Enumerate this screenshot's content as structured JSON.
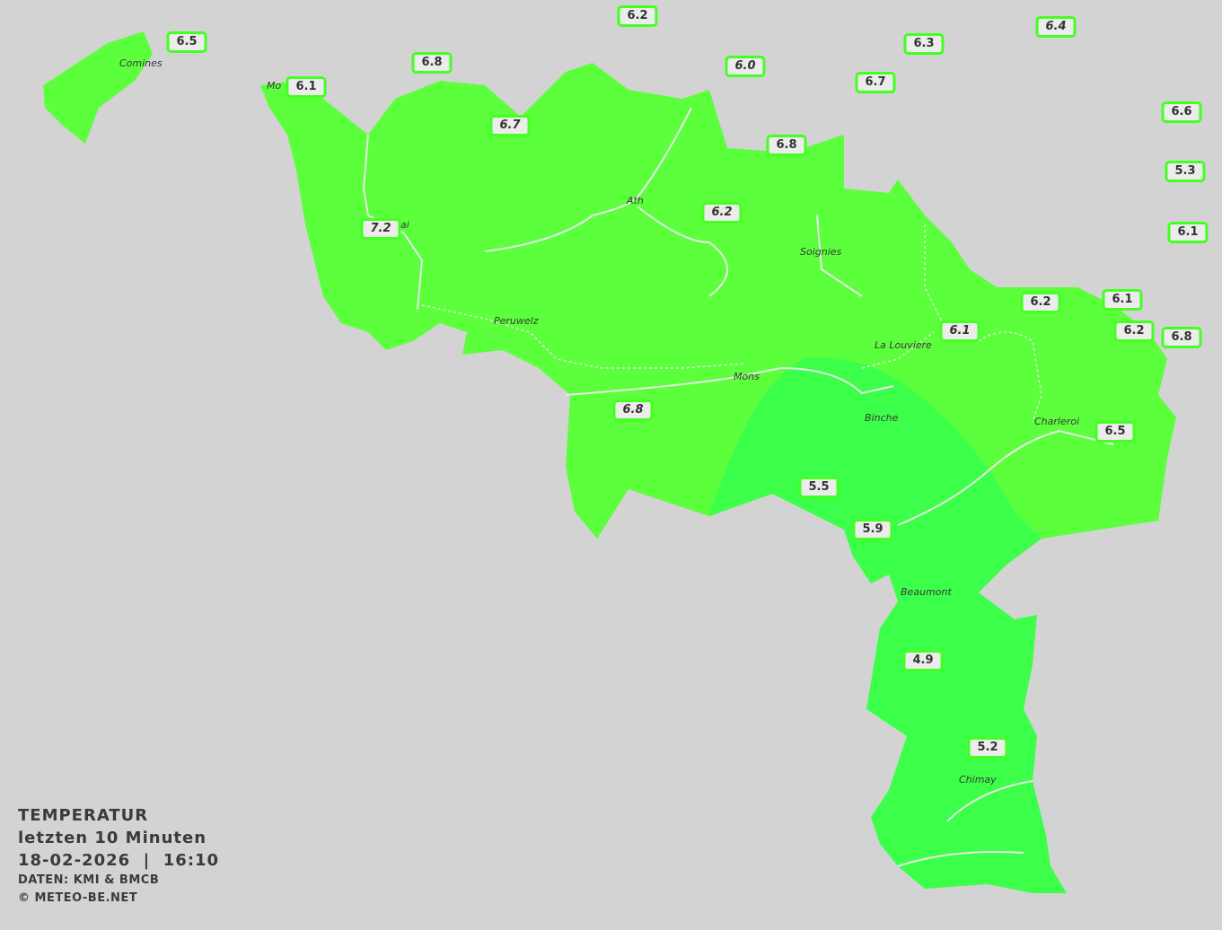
{
  "legend": {
    "title": "TEMPERATUR",
    "period": "letzten 10 Minuten",
    "datetime": "18-02-2026  |  16:10",
    "source": "DATEN: KMI & BMCB",
    "copyright": "© METEO-BE.NET"
  },
  "colors": {
    "background": "#d3d3d3",
    "region_warm": "#5cff3c",
    "region_cool": "#3cff4a",
    "label_border": "#44ff22"
  },
  "cities": [
    "Comines",
    "Mo",
    "ai",
    "Ath",
    "Soignies",
    "Peruwelz",
    "La Louviere",
    "Mons",
    "Binche",
    "Charleroi",
    "Beaumont",
    "Chimay"
  ],
  "stations": [
    {
      "value": "6.2",
      "italic": false
    },
    {
      "value": "6.5",
      "italic": false
    },
    {
      "value": "6.4",
      "italic": true
    },
    {
      "value": "6.3",
      "italic": false
    },
    {
      "value": "6.8",
      "italic": false
    },
    {
      "value": "6.0",
      "italic": true
    },
    {
      "value": "6.1",
      "italic": false
    },
    {
      "value": "6.7",
      "italic": false
    },
    {
      "value": "6.6",
      "italic": false
    },
    {
      "value": "6.7",
      "italic": true
    },
    {
      "value": "6.8",
      "italic": false
    },
    {
      "value": "5.3",
      "italic": false
    },
    {
      "value": "6.2",
      "italic": true
    },
    {
      "value": "7.2",
      "italic": true
    },
    {
      "value": "6.1",
      "italic": false
    },
    {
      "value": "6.2",
      "italic": false
    },
    {
      "value": "6.1",
      "italic": false
    },
    {
      "value": "6.1",
      "italic": true
    },
    {
      "value": "6.2",
      "italic": false
    },
    {
      "value": "6.8",
      "italic": false
    },
    {
      "value": "6.8",
      "italic": true
    },
    {
      "value": "6.5",
      "italic": false
    },
    {
      "value": "5.5",
      "italic": false
    },
    {
      "value": "5.9",
      "italic": false
    },
    {
      "value": "4.9",
      "italic": false
    },
    {
      "value": "5.2",
      "italic": false
    }
  ]
}
